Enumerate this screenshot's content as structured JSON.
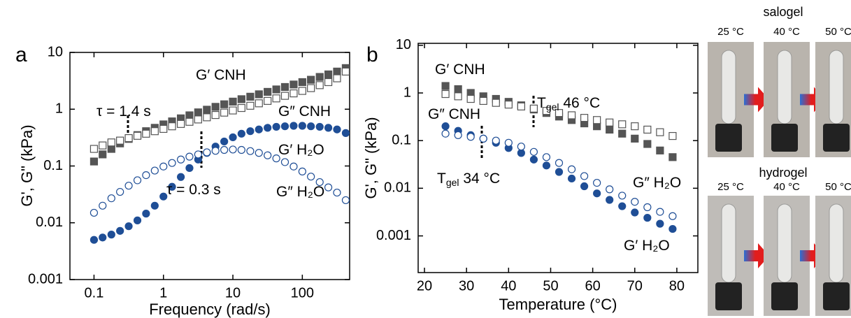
{
  "chart_data": [
    {
      "type": "scatter",
      "panel": "a",
      "x_label": "Frequency (rad/s)",
      "y_label": "G', G\" (kPa)",
      "xlog": true,
      "ylog": true,
      "xlim": [
        0.045,
        480
      ],
      "ylim": [
        0.001,
        10
      ],
      "xticks": [
        0.1,
        1,
        10,
        100
      ],
      "yticks": [
        0.001,
        0.01,
        0.1,
        1,
        10
      ],
      "x": [
        0.1,
        0.133,
        0.178,
        0.237,
        0.316,
        0.422,
        0.562,
        0.75,
        1,
        1.33,
        1.78,
        2.37,
        3.16,
        4.22,
        5.62,
        7.5,
        10,
        13.3,
        17.8,
        23.7,
        31.6,
        42.2,
        56.2,
        75,
        100,
        133,
        178,
        237,
        316,
        422
      ],
      "series": [
        {
          "color": "#555555",
          "marker": "square",
          "filled": true,
          "values": [
            0.12,
            0.16,
            0.2,
            0.25,
            0.3,
            0.35,
            0.41,
            0.47,
            0.54,
            0.61,
            0.69,
            0.78,
            0.88,
            0.98,
            1.1,
            1.22,
            1.36,
            1.5,
            1.66,
            1.83,
            2.02,
            2.23,
            2.46,
            2.72,
            3.0,
            3.3,
            3.7,
            4.1,
            4.6,
            5.3
          ]
        },
        {
          "color": "#555555",
          "marker": "square",
          "filled": false,
          "values": [
            0.2,
            0.23,
            0.26,
            0.28,
            0.31,
            0.34,
            0.37,
            0.41,
            0.45,
            0.5,
            0.55,
            0.6,
            0.66,
            0.72,
            0.79,
            0.87,
            0.95,
            1.05,
            1.15,
            1.27,
            1.4,
            1.55,
            1.72,
            1.9,
            2.1,
            2.35,
            2.65,
            3.0,
            3.5,
            4.6
          ]
        },
        {
          "color": "#1f4e96",
          "marker": "circle",
          "filled": true,
          "values": [
            0.005,
            0.0055,
            0.0062,
            0.0072,
            0.0087,
            0.011,
            0.0145,
            0.02,
            0.029,
            0.043,
            0.064,
            0.092,
            0.13,
            0.17,
            0.22,
            0.27,
            0.32,
            0.37,
            0.41,
            0.44,
            0.47,
            0.49,
            0.5,
            0.51,
            0.51,
            0.5,
            0.49,
            0.47,
            0.44,
            0.38
          ]
        },
        {
          "color": "#1f4e96",
          "marker": "circle",
          "filled": false,
          "values": [
            0.015,
            0.02,
            0.027,
            0.035,
            0.045,
            0.056,
            0.069,
            0.083,
            0.098,
            0.113,
            0.13,
            0.146,
            0.16,
            0.174,
            0.185,
            0.192,
            0.195,
            0.192,
            0.183,
            0.17,
            0.154,
            0.136,
            0.117,
            0.098,
            0.08,
            0.065,
            0.052,
            0.042,
            0.034,
            0.025
          ]
        }
      ],
      "annotations": [
        {
          "text": "G′ CNH",
          "color": "#555555"
        },
        {
          "text": "G″ CNH",
          "color": "#555555"
        },
        {
          "text": "G′ H₂O",
          "color": "#1f4e96"
        },
        {
          "text": "G″ H₂O",
          "color": "#1f4e96"
        },
        {
          "text": "τ = 1.4 s",
          "color": "#000000"
        },
        {
          "text": "τ = 0.3 s",
          "color": "#000000"
        }
      ]
    },
    {
      "type": "scatter",
      "panel": "b",
      "x_label": "Temperature (°C)",
      "y_label": "G', G\" (kPa)",
      "xlog": false,
      "ylog": true,
      "xlim": [
        18.5,
        85
      ],
      "ylim": [
        0.00017,
        11
      ],
      "xticks": [
        20,
        30,
        40,
        50,
        60,
        70,
        80
      ],
      "yticks": [
        0.001,
        0.01,
        0.1,
        1,
        10
      ],
      "x": [
        25,
        28,
        31,
        34,
        37,
        40,
        43,
        46,
        49,
        52,
        55,
        58,
        61,
        64,
        67,
        70,
        73,
        76,
        79
      ],
      "series": [
        {
          "color": "#555555",
          "marker": "square",
          "filled": true,
          "values": [
            1.4,
            1.2,
            1.0,
            0.85,
            0.75,
            0.65,
            0.55,
            0.45,
            0.38,
            0.32,
            0.27,
            0.23,
            0.2,
            0.17,
            0.14,
            0.11,
            0.085,
            0.062,
            0.045
          ]
        },
        {
          "color": "#555555",
          "marker": "square",
          "filled": false,
          "values": [
            0.95,
            0.85,
            0.75,
            0.68,
            0.62,
            0.57,
            0.52,
            0.47,
            0.42,
            0.38,
            0.34,
            0.3,
            0.27,
            0.24,
            0.22,
            0.2,
            0.17,
            0.15,
            0.125
          ]
        },
        {
          "color": "#1f4e96",
          "marker": "circle",
          "filled": true,
          "values": [
            0.2,
            0.16,
            0.13,
            0.11,
            0.09,
            0.07,
            0.055,
            0.04,
            0.03,
            0.022,
            0.016,
            0.011,
            0.0078,
            0.0057,
            0.0042,
            0.0031,
            0.0024,
            0.0018,
            0.0014
          ]
        },
        {
          "color": "#1f4e96",
          "marker": "circle",
          "filled": false,
          "values": [
            0.14,
            0.13,
            0.12,
            0.11,
            0.1,
            0.09,
            0.075,
            0.058,
            0.045,
            0.034,
            0.025,
            0.018,
            0.013,
            0.0095,
            0.007,
            0.0052,
            0.004,
            0.0032,
            0.0026
          ]
        }
      ],
      "annotations": [
        {
          "text": "G′ CNH",
          "color": "#555555"
        },
        {
          "text": "G″ CNH",
          "color": "#555555"
        },
        {
          "text": "T",
          "sub": "gel",
          "after": " 46 °C",
          "color": "#555555"
        },
        {
          "text": "T",
          "sub": "gel",
          "after": " 34 °C",
          "color": "#1f4e96"
        },
        {
          "text": "G″ H₂O",
          "color": "#1f4e96"
        },
        {
          "text": "G′ H₂O",
          "color": "#1f4e96"
        }
      ]
    }
  ],
  "photos": {
    "rows": [
      {
        "label": "salogel",
        "temps": [
          "25 °C",
          "40 °C",
          "50 °C"
        ]
      },
      {
        "label": "hydrogel",
        "temps": [
          "25 °C",
          "40 °C",
          "50 °C"
        ]
      }
    ]
  }
}
